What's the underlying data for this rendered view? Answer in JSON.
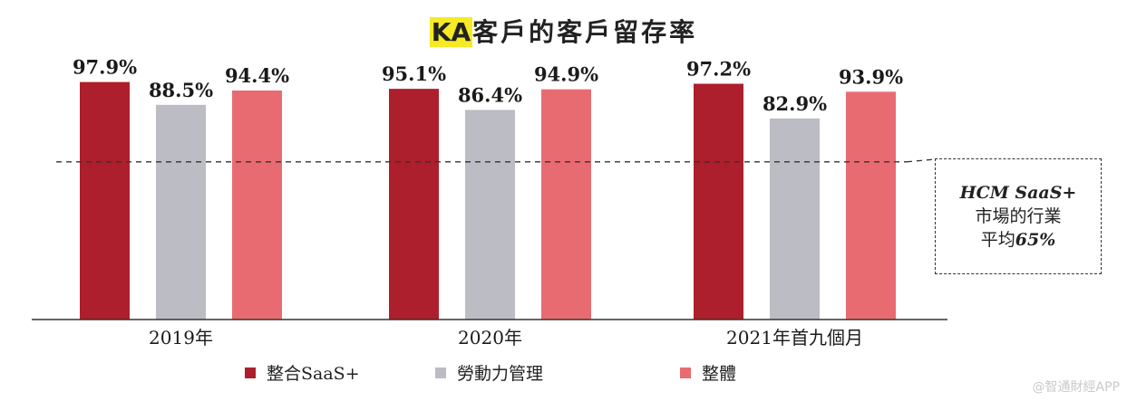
{
  "title_highlight": "KA",
  "title_rest": "客戶的客戶留存率",
  "colors": {
    "integrated": "#ad1f2c",
    "workforce": "#bcbcc4",
    "overall": "#e96b72"
  },
  "chart_data": {
    "type": "bar",
    "title": "KA客戶的客戶留存率",
    "categories": [
      "2019年",
      "2020年",
      "2021年首九個月"
    ],
    "series": [
      {
        "name": "整合SaaS+",
        "values": [
          97.9,
          95.1,
          97.2
        ],
        "labels": [
          "97.9%",
          "95.1%",
          "97.2%"
        ]
      },
      {
        "name": "勞動力管理",
        "values": [
          88.5,
          86.4,
          82.9
        ],
        "labels": [
          "88.5%",
          "86.4%",
          "82.9%"
        ]
      },
      {
        "name": "整體",
        "values": [
          94.4,
          94.9,
          93.9
        ],
        "labels": [
          "94.4%",
          "94.9%",
          "93.9%"
        ]
      }
    ],
    "reference_line": {
      "value": 65
    },
    "ylim": [
      0,
      100
    ],
    "legend_position": "bottom"
  },
  "reference": {
    "line1": "HCM SaaS+",
    "line2": "市場的行業",
    "line3_prefix": "平均",
    "line3_value": "65%"
  },
  "watermark": "@智通財經APP"
}
